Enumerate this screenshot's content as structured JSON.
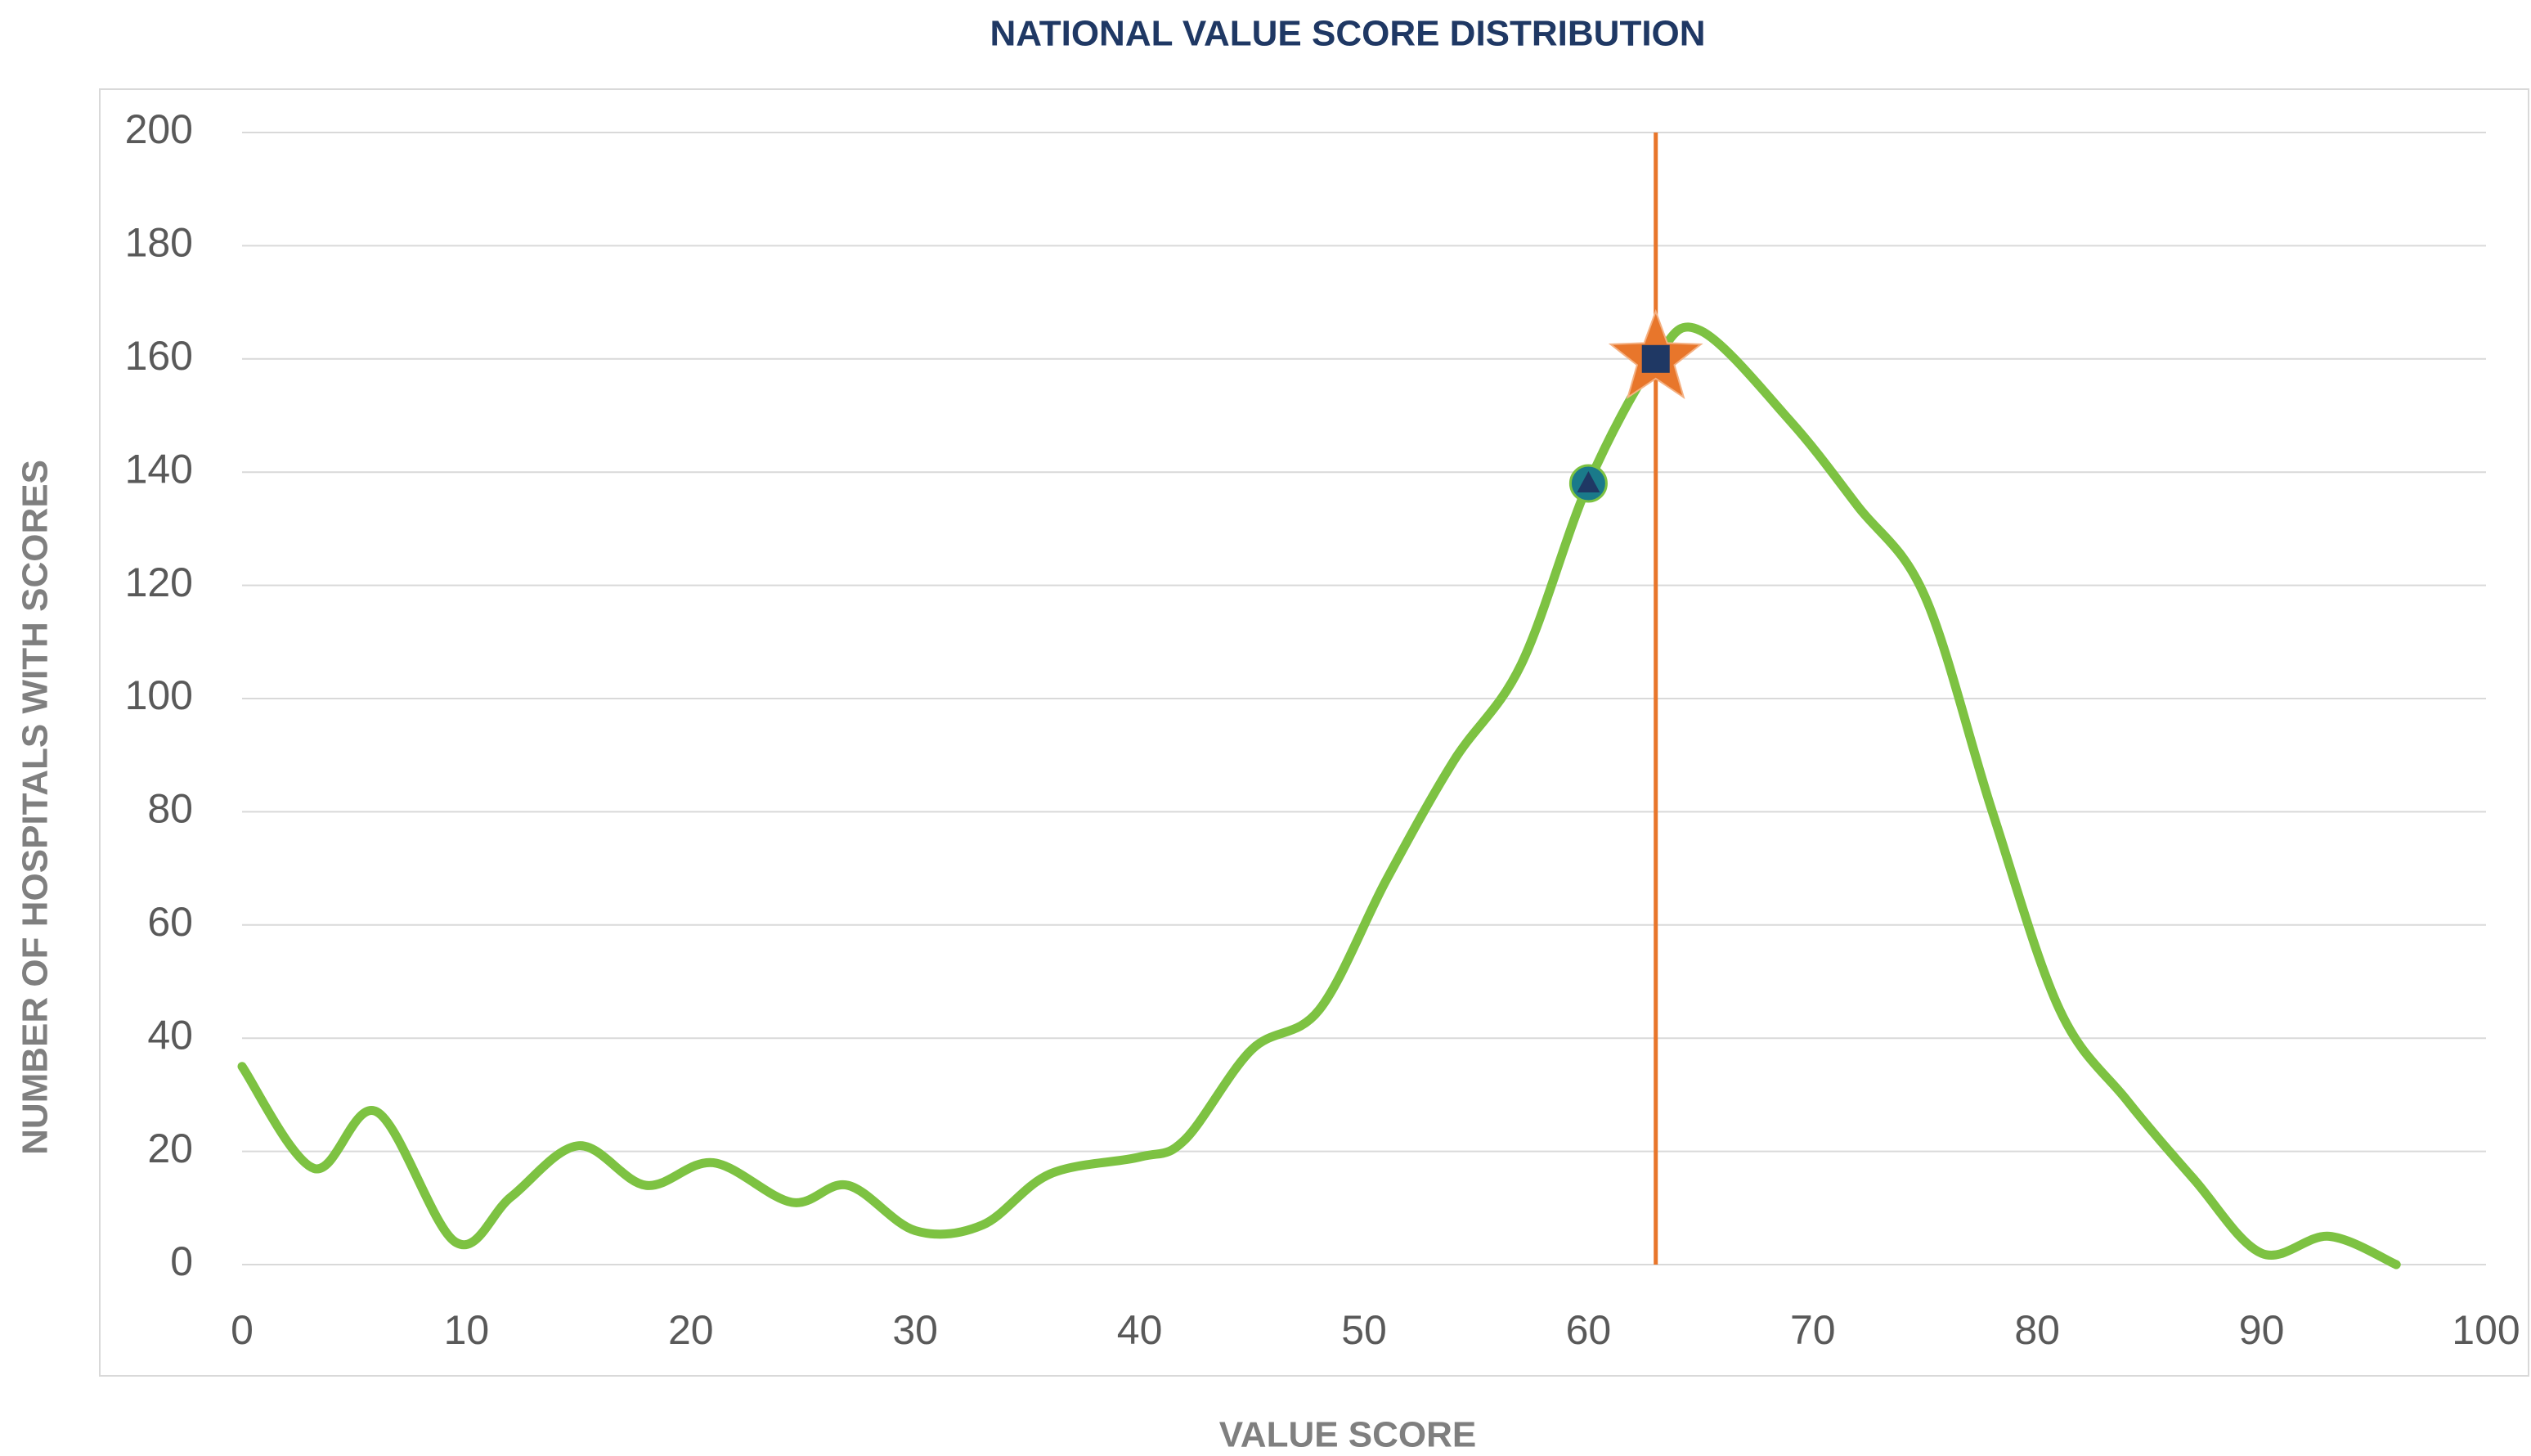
{
  "chart_data": {
    "type": "line",
    "title": "NATIONAL VALUE SCORE DISTRIBUTION",
    "x_label": "VALUE SCORE",
    "y_label": "NUMBER OF HOSPITALS WITH SCORES",
    "x": [
      0,
      3.2,
      6,
      9.5,
      12,
      15,
      18,
      21,
      24.5,
      27,
      30,
      33,
      36,
      40,
      42,
      45,
      48,
      51,
      54,
      57,
      60,
      63,
      65,
      69,
      72,
      75,
      78,
      81,
      84,
      87,
      90,
      93,
      96
    ],
    "values": [
      35,
      17,
      27,
      4,
      12,
      21,
      14,
      18,
      11,
      14,
      6,
      7,
      16,
      19,
      22,
      38,
      45,
      68,
      89,
      106,
      138,
      160,
      165,
      149,
      134,
      118,
      80,
      45,
      29,
      15,
      2,
      5,
      0
    ],
    "color": "#7dc242",
    "smooth": true,
    "xlim": [
      0,
      100
    ],
    "xticks": [
      0,
      10,
      20,
      30,
      40,
      50,
      60,
      70,
      80,
      90,
      100
    ],
    "ylim": [
      0,
      200
    ],
    "yticks": [
      0,
      20,
      40,
      60,
      80,
      100,
      120,
      140,
      160,
      180,
      200
    ],
    "grid": true,
    "reference_line": {
      "x": 63,
      "color": "#e8762b"
    },
    "markers": [
      {
        "x": 60,
        "y": 138,
        "shape": "circle-triangle",
        "color": "#1a7a8a",
        "inner_color": "#1f3864"
      },
      {
        "x": 63,
        "y": 160,
        "shape": "star-square",
        "color": "#e8762b",
        "inner_color": "#1f3864"
      }
    ]
  }
}
